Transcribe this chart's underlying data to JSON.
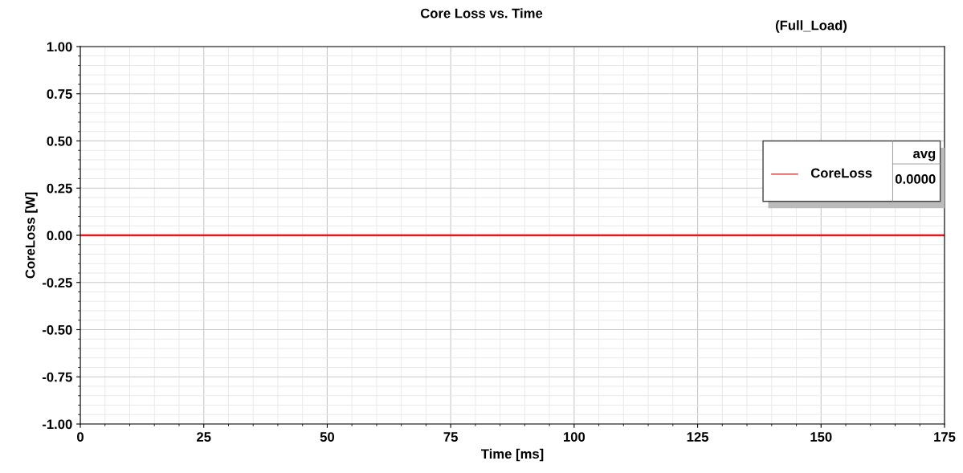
{
  "chart_data": {
    "type": "line",
    "title": "Core Loss vs. Time",
    "subtitle": "(Full_Load)",
    "xlabel": "Time [ms]",
    "ylabel": "CoreLoss [W]",
    "x": [
      0,
      175
    ],
    "series": [
      {
        "name": "CoreLoss",
        "color": "#e41a1c",
        "values": [
          0,
          0
        ]
      }
    ],
    "annotations": [
      "avg",
      "0.0000"
    ],
    "xlim": [
      0,
      175
    ],
    "xticks": [
      0,
      25,
      50,
      75,
      100,
      125,
      150,
      175
    ],
    "ylim": [
      -1,
      1
    ],
    "yticks": [
      {
        "value": -1,
        "label": "-1.00"
      },
      {
        "value": -0.75,
        "label": "-0.75"
      },
      {
        "value": -0.5,
        "label": "-0.50"
      },
      {
        "value": -0.25,
        "label": "-0.25"
      },
      {
        "value": 0,
        "label": "0.00"
      },
      {
        "value": 0.25,
        "label": "0.25"
      },
      {
        "value": 0.5,
        "label": "0.50"
      },
      {
        "value": 0.75,
        "label": "0.75"
      },
      {
        "value": 1,
        "label": "1.00"
      }
    ],
    "grid": true,
    "legend": "right",
    "marker": "none",
    "line_style": "solid"
  }
}
